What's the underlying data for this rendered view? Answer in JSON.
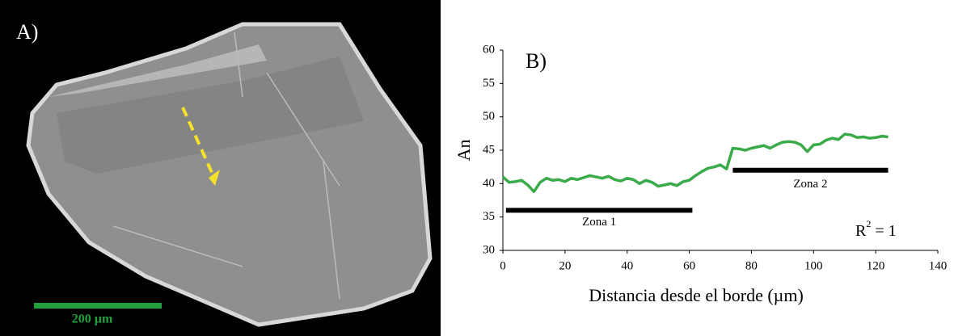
{
  "panel_a": {
    "label": "A)",
    "scale_bar": "200 µm"
  },
  "chart_data": {
    "type": "line",
    "panel_label": "B)",
    "x_label": "Distancia desde el borde (µm)",
    "y_label": "An",
    "xlim": [
      0,
      140
    ],
    "xticks": [
      0,
      20,
      40,
      60,
      80,
      100,
      120,
      140
    ],
    "ylim": [
      30,
      60
    ],
    "yticks": [
      30,
      35,
      40,
      45,
      50,
      55,
      60
    ],
    "x": [
      0,
      2,
      4,
      6,
      8,
      10,
      12,
      14,
      16,
      18,
      20,
      22,
      24,
      26,
      28,
      30,
      32,
      34,
      36,
      38,
      40,
      42,
      44,
      46,
      48,
      50,
      52,
      54,
      56,
      58,
      60,
      62,
      64,
      66,
      68,
      70,
      72,
      74,
      76,
      78,
      80,
      82,
      84,
      86,
      88,
      90,
      92,
      94,
      96,
      98,
      100,
      102,
      104,
      106,
      108,
      110,
      112,
      114,
      116,
      118,
      120,
      122,
      124
    ],
    "series": [
      {
        "color": "#3aaa4a",
        "values": [
          41,
          40.2,
          40.3,
          40.5,
          39.8,
          38.8,
          40.2,
          40.8,
          40.5,
          40.6,
          40.3,
          40.8,
          40.6,
          40.9,
          41.2,
          41,
          40.8,
          41.1,
          40.6,
          40.4,
          40.8,
          40.6,
          40,
          40.5,
          40.2,
          39.6,
          39.8,
          40,
          39.7,
          40.3,
          40.5,
          41.2,
          41.8,
          42.3,
          42.5,
          42.8,
          42.2,
          45.3,
          45.2,
          45,
          45.3,
          45.5,
          45.7,
          45.3,
          45.8,
          46.2,
          46.3,
          46.2,
          45.8,
          44.8,
          45.8,
          45.9,
          46.5,
          46.8,
          46.6,
          47.4,
          47.3,
          46.9,
          47,
          46.8,
          46.9,
          47.1,
          47
        ]
      }
    ],
    "zones": [
      {
        "label": "Zona 1",
        "x": [
          1,
          61
        ],
        "y": 36
      },
      {
        "label": "Zona 2",
        "x": [
          74,
          124
        ],
        "y": 42
      }
    ],
    "annotation": {
      "base": "R",
      "superscript": "2",
      "suffix": "= 1"
    }
  }
}
